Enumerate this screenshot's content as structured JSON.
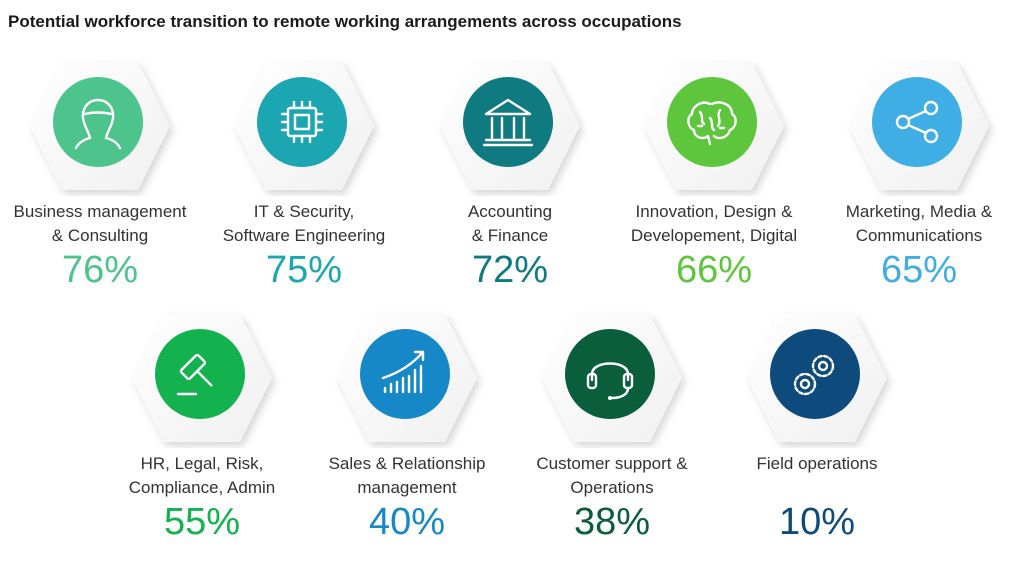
{
  "title": "Potential workforce transition to remote working arrangements across occupations",
  "chart_data": {
    "type": "table",
    "categories": [
      "Business management & Consulting",
      "IT & Security, Software Engineering",
      "Accounting & Finance",
      "Innovation, Design & Developement, Digital",
      "Marketing, Media & Communications",
      "HR, Legal, Risk, Compliance, Admin",
      "Sales & Relationship management",
      "Customer support & Operations",
      "Field operations"
    ],
    "values": [
      76,
      75,
      72,
      66,
      65,
      55,
      40,
      38,
      10
    ],
    "items": [
      {
        "label_line1": "Business management",
        "label_line2": "& Consulting",
        "value": 76,
        "value_text": "76%",
        "color": "#4cc48c",
        "icon": "person-head-icon"
      },
      {
        "label_line1": "IT & Security,",
        "label_line2": "Software Engineering",
        "value": 75,
        "value_text": "75%",
        "color": "#1ba6b2",
        "icon": "microchip-icon"
      },
      {
        "label_line1": "Accounting",
        "label_line2": "& Finance",
        "value": 72,
        "value_text": "72%",
        "color": "#0f7a80",
        "icon": "bank-building-icon"
      },
      {
        "label_line1": "Innovation, Design &",
        "label_line2": "Developement, Digital",
        "value": 66,
        "value_text": "66%",
        "color": "#5dc63c",
        "icon": "brain-icon"
      },
      {
        "label_line1": "Marketing, Media &",
        "label_line2": "Communications",
        "value": 65,
        "value_text": "65%",
        "color": "#3eaee4",
        "icon": "share-icon"
      },
      {
        "label_line1": "HR, Legal, Risk,",
        "label_line2": "Compliance, Admin",
        "value": 55,
        "value_text": "55%",
        "color": "#13b24f",
        "icon": "gavel-icon"
      },
      {
        "label_line1": "Sales & Relationship",
        "label_line2": "management",
        "value": 40,
        "value_text": "40%",
        "color": "#1688c8",
        "icon": "growth-chart-icon"
      },
      {
        "label_line1": "Customer support &",
        "label_line2": "Operations",
        "value": 38,
        "value_text": "38%",
        "color": "#0b5e3c",
        "icon": "headset-icon"
      },
      {
        "label_line1": "Field operations",
        "label_line2": "",
        "value": 10,
        "value_text": "10%",
        "color": "#0e4a7c",
        "icon": "gears-icon"
      }
    ]
  }
}
